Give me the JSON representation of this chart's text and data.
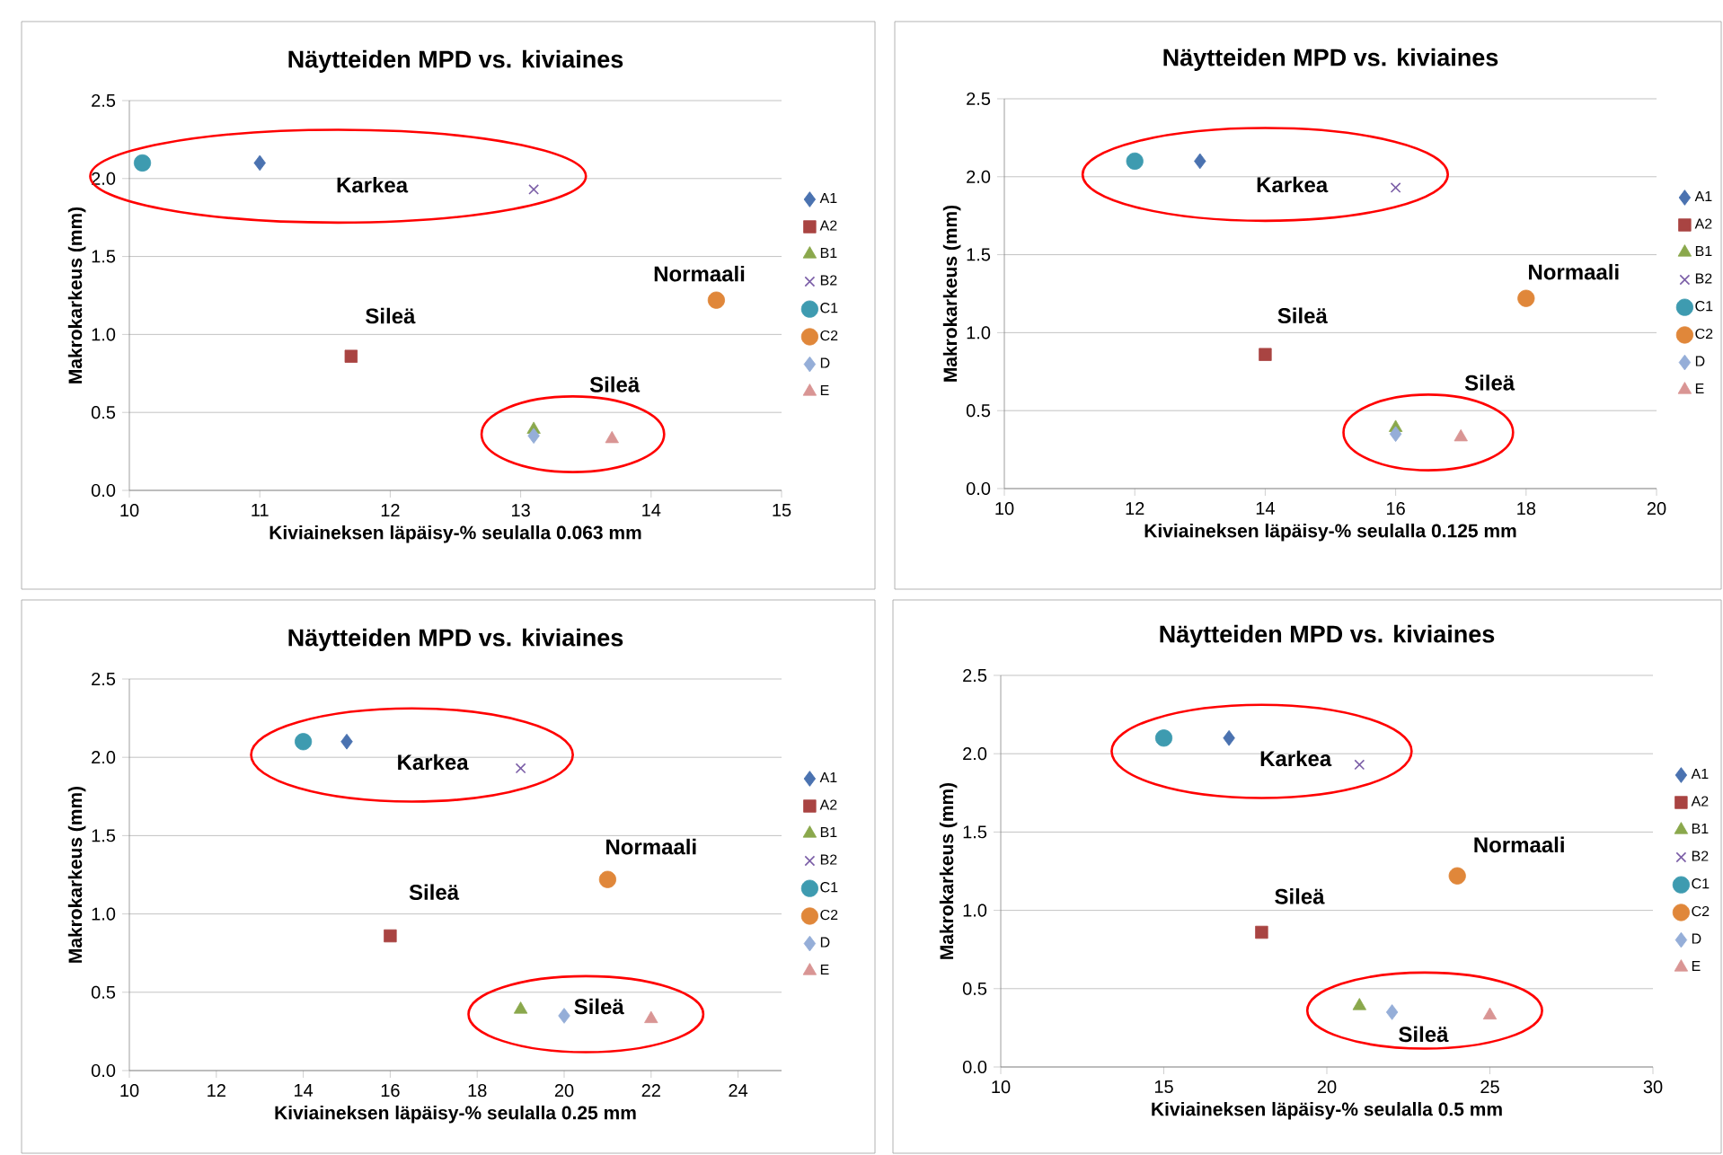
{
  "chart_data": [
    {
      "type": "scatter",
      "title": "Näytteiden MPD vs. kiviaines",
      "xlabel": "Kiviaineksen läpäisy-% seulalla 0.063 mm",
      "ylabel": "Makrokarkeus (mm)",
      "xlim": [
        10,
        15
      ],
      "xticks": [
        10,
        11,
        12,
        13,
        14,
        15
      ],
      "ylim": [
        0,
        2.5
      ],
      "yticks": [
        {
          "value": 0,
          "label": "0.0"
        },
        0.5,
        {
          "value": 1,
          "label": "1.0"
        },
        1.5,
        {
          "value": 2,
          "label": "2.0"
        },
        2.5
      ],
      "grid": "y",
      "legend": "right",
      "series": [
        {
          "name": "A1",
          "color": "#4a72b0",
          "marker": "diamond",
          "x": [
            11
          ],
          "values": [
            2.1
          ]
        },
        {
          "name": "A2",
          "color": "#a94442",
          "marker": "square",
          "x": [
            11.7
          ],
          "values": [
            0.86
          ]
        },
        {
          "name": "B1",
          "color": "#8aa84c",
          "marker": "triangle",
          "x": [
            13.1
          ],
          "values": [
            0.39
          ]
        },
        {
          "name": "B2",
          "color": "#7b5ea7",
          "marker": "cross",
          "x": [
            13.1
          ],
          "values": [
            1.93
          ]
        },
        {
          "name": "C1",
          "color": "#3e9bb0",
          "marker": "circle",
          "x": [
            10.1
          ],
          "values": [
            2.1
          ]
        },
        {
          "name": "C2",
          "color": "#e0873a",
          "marker": "circle",
          "x": [
            14.5
          ],
          "values": [
            1.22
          ]
        },
        {
          "name": "D",
          "color": "#95aed8",
          "marker": "diamond",
          "x": [
            13.1
          ],
          "values": [
            0.35
          ]
        },
        {
          "name": "E",
          "color": "#d99594",
          "marker": "triangle",
          "x": [
            13.7
          ],
          "values": [
            0.33
          ]
        }
      ],
      "annotations": [
        "Karkea",
        "Sileä",
        "Normaali",
        "Sileä"
      ]
    },
    {
      "type": "scatter",
      "title": "Näytteiden MPD vs. kiviaines",
      "xlabel": "Kiviaineksen läpäisy-%  seulalla 0.125 mm",
      "ylabel": "Makrokarkeus (mm)",
      "xlim": [
        10,
        20
      ],
      "xticks": [
        10,
        12,
        14,
        16,
        18,
        20
      ],
      "ylim": [
        0,
        2.5
      ],
      "yticks": [
        {
          "value": 0,
          "label": "0.0"
        },
        0.5,
        {
          "value": 1,
          "label": "1.0"
        },
        1.5,
        {
          "value": 2,
          "label": "2.0"
        },
        2.5
      ],
      "grid": "y",
      "legend": "right",
      "series": [
        {
          "name": "A1",
          "color": "#4a72b0",
          "marker": "diamond",
          "x": [
            13
          ],
          "values": [
            2.1
          ]
        },
        {
          "name": "A2",
          "color": "#a94442",
          "marker": "square",
          "x": [
            14
          ],
          "values": [
            0.86
          ]
        },
        {
          "name": "B1",
          "color": "#8aa84c",
          "marker": "triangle",
          "x": [
            16
          ],
          "values": [
            0.39
          ]
        },
        {
          "name": "B2",
          "color": "#7b5ea7",
          "marker": "cross",
          "x": [
            16
          ],
          "values": [
            1.93
          ]
        },
        {
          "name": "C1",
          "color": "#3e9bb0",
          "marker": "circle",
          "x": [
            12
          ],
          "values": [
            2.1
          ]
        },
        {
          "name": "C2",
          "color": "#e0873a",
          "marker": "circle",
          "x": [
            18
          ],
          "values": [
            1.22
          ]
        },
        {
          "name": "D",
          "color": "#95aed8",
          "marker": "diamond",
          "x": [
            16
          ],
          "values": [
            0.35
          ]
        },
        {
          "name": "E",
          "color": "#d99594",
          "marker": "triangle",
          "x": [
            17
          ],
          "values": [
            0.33
          ]
        }
      ],
      "annotations": [
        "Karkea",
        "Sileä",
        "Normaali",
        "Sileä"
      ]
    },
    {
      "type": "scatter",
      "title": "Näytteiden MPD vs. kiviaines",
      "xlabel": "Kiviaineksen läpäisy-% seulalla 0.25 mm",
      "ylabel": "Makrokarkeus (mm)",
      "xlim": [
        10,
        25
      ],
      "xticks": [
        10,
        12,
        14,
        16,
        18,
        20,
        22,
        24
      ],
      "ylim": [
        0,
        2.5
      ],
      "yticks": [
        {
          "value": 0,
          "label": "0.0"
        },
        0.5,
        {
          "value": 1,
          "label": "1.0"
        },
        1.5,
        {
          "value": 2,
          "label": "2.0"
        },
        2.5
      ],
      "grid": "y",
      "legend": "right",
      "series": [
        {
          "name": "A1",
          "color": "#4a72b0",
          "marker": "diamond",
          "x": [
            15
          ],
          "values": [
            2.1
          ]
        },
        {
          "name": "A2",
          "color": "#a94442",
          "marker": "square",
          "x": [
            16
          ],
          "values": [
            0.86
          ]
        },
        {
          "name": "B1",
          "color": "#8aa84c",
          "marker": "triangle",
          "x": [
            19
          ],
          "values": [
            0.39
          ]
        },
        {
          "name": "B2",
          "color": "#7b5ea7",
          "marker": "cross",
          "x": [
            19
          ],
          "values": [
            1.93
          ]
        },
        {
          "name": "C1",
          "color": "#3e9bb0",
          "marker": "circle",
          "x": [
            14
          ],
          "values": [
            2.1
          ]
        },
        {
          "name": "C2",
          "color": "#e0873a",
          "marker": "circle",
          "x": [
            21
          ],
          "values": [
            1.22
          ]
        },
        {
          "name": "D",
          "color": "#95aed8",
          "marker": "diamond",
          "x": [
            20
          ],
          "values": [
            0.35
          ]
        },
        {
          "name": "E",
          "color": "#d99594",
          "marker": "triangle",
          "x": [
            22
          ],
          "values": [
            0.33
          ]
        }
      ],
      "annotations": [
        "Karkea",
        "Sileä",
        "Normaali",
        "Sileä"
      ]
    },
    {
      "type": "scatter",
      "title": "Näytteiden MPD vs. kiviaines",
      "xlabel": "Kiviaineksen läpäisy-%  seulalla 0.5 mm",
      "ylabel": "Makrokarkeus (mm)",
      "xlim": [
        10,
        30
      ],
      "xticks": [
        10,
        15,
        20,
        25,
        30
      ],
      "ylim": [
        0,
        2.5
      ],
      "yticks": [
        {
          "value": 0,
          "label": "0.0"
        },
        0.5,
        {
          "value": 1,
          "label": "1.0"
        },
        1.5,
        {
          "value": 2,
          "label": "2.0"
        },
        2.5
      ],
      "grid": "y",
      "legend": "right",
      "series": [
        {
          "name": "A1",
          "color": "#4a72b0",
          "marker": "diamond",
          "x": [
            17
          ],
          "values": [
            2.1
          ]
        },
        {
          "name": "A2",
          "color": "#a94442",
          "marker": "square",
          "x": [
            18
          ],
          "values": [
            0.86
          ]
        },
        {
          "name": "B1",
          "color": "#8aa84c",
          "marker": "triangle",
          "x": [
            21
          ],
          "values": [
            0.39
          ]
        },
        {
          "name": "B2",
          "color": "#7b5ea7",
          "marker": "cross",
          "x": [
            21
          ],
          "values": [
            1.93
          ]
        },
        {
          "name": "C1",
          "color": "#3e9bb0",
          "marker": "circle",
          "x": [
            15
          ],
          "values": [
            2.1
          ]
        },
        {
          "name": "C2",
          "color": "#e0873a",
          "marker": "circle",
          "x": [
            24
          ],
          "values": [
            1.22
          ]
        },
        {
          "name": "D",
          "color": "#95aed8",
          "marker": "diamond",
          "x": [
            22
          ],
          "values": [
            0.35
          ]
        },
        {
          "name": "E",
          "color": "#d99594",
          "marker": "triangle",
          "x": [
            25
          ],
          "values": [
            0.33
          ]
        }
      ],
      "annotations": [
        "Karkea",
        "Sileä",
        "Normaali",
        "Sileä"
      ]
    }
  ]
}
